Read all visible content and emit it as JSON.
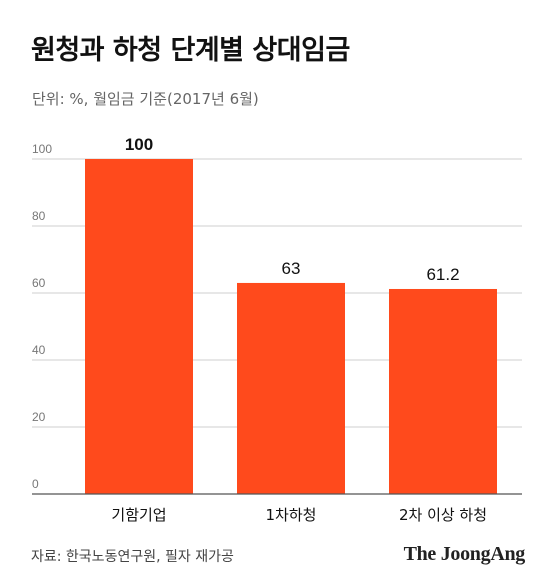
{
  "header": {
    "title": "원청과 하청 단계별 상대임금",
    "subtitle": "단위: %, 월임금 기준(2017년 6월)"
  },
  "footer": {
    "source": "자료: 한국노동연구원, 필자 재가공",
    "logo_text": "The JoongAng"
  },
  "colors": {
    "bar": "#FF4A1C",
    "grid": "#cfcfcf",
    "axis": "#555555"
  },
  "chart_data": {
    "type": "bar",
    "title": "원청과 하청 단계별 상대임금",
    "subtitle": "단위: %, 월임금 기준(2017년 6월)",
    "categories": [
      "기함기업",
      "1차하청",
      "2차 이상 하청"
    ],
    "values": [
      100,
      63,
      61.2
    ],
    "data_labels": [
      "100",
      "63",
      "61.2"
    ],
    "ylim": [
      0,
      100
    ],
    "yticks": [
      0,
      20,
      40,
      60,
      80,
      100
    ],
    "grid": true,
    "xlabel": "",
    "ylabel": ""
  }
}
